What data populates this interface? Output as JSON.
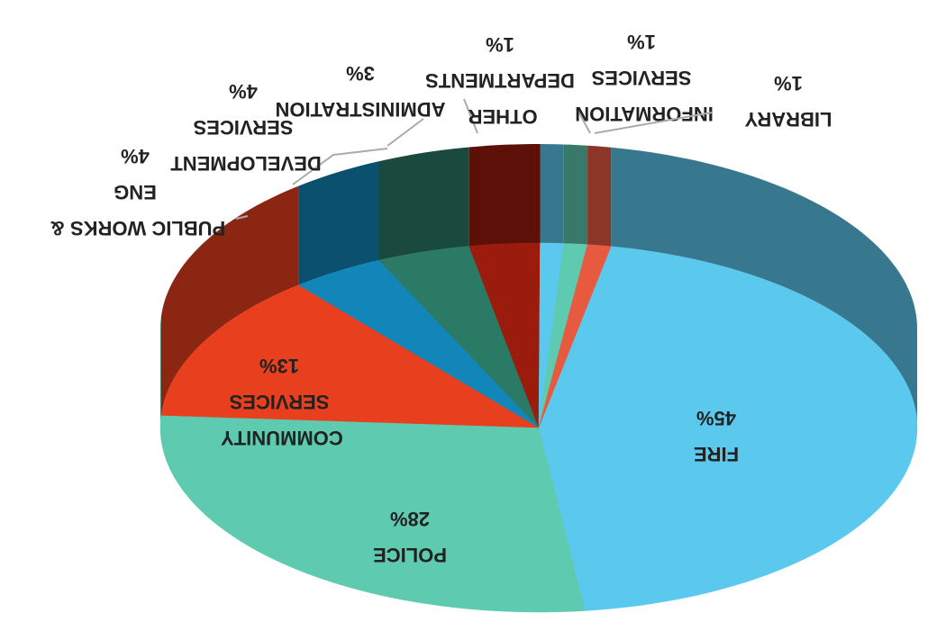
{
  "chart_data": {
    "type": "pie",
    "categories": [
      "Fire",
      "Police",
      "Community Services",
      "Public Works & Eng",
      "Development Services",
      "Administration",
      "Other Departments",
      "Information Services",
      "Library"
    ],
    "values": [
      45,
      28,
      13,
      4,
      4,
      3,
      1,
      1,
      1
    ],
    "value_labels": [
      "45%",
      "28%",
      "13%",
      "4%",
      "4%",
      "3%",
      "1%",
      "1%",
      "1%"
    ],
    "colors": [
      "#5bc8ee",
      "#5ecab0",
      "#e8401f",
      "#1286b8",
      "#2b7a66",
      "#9b1b0c",
      "#5bc8ee",
      "#5ecab0",
      "#e85a40"
    ]
  }
}
